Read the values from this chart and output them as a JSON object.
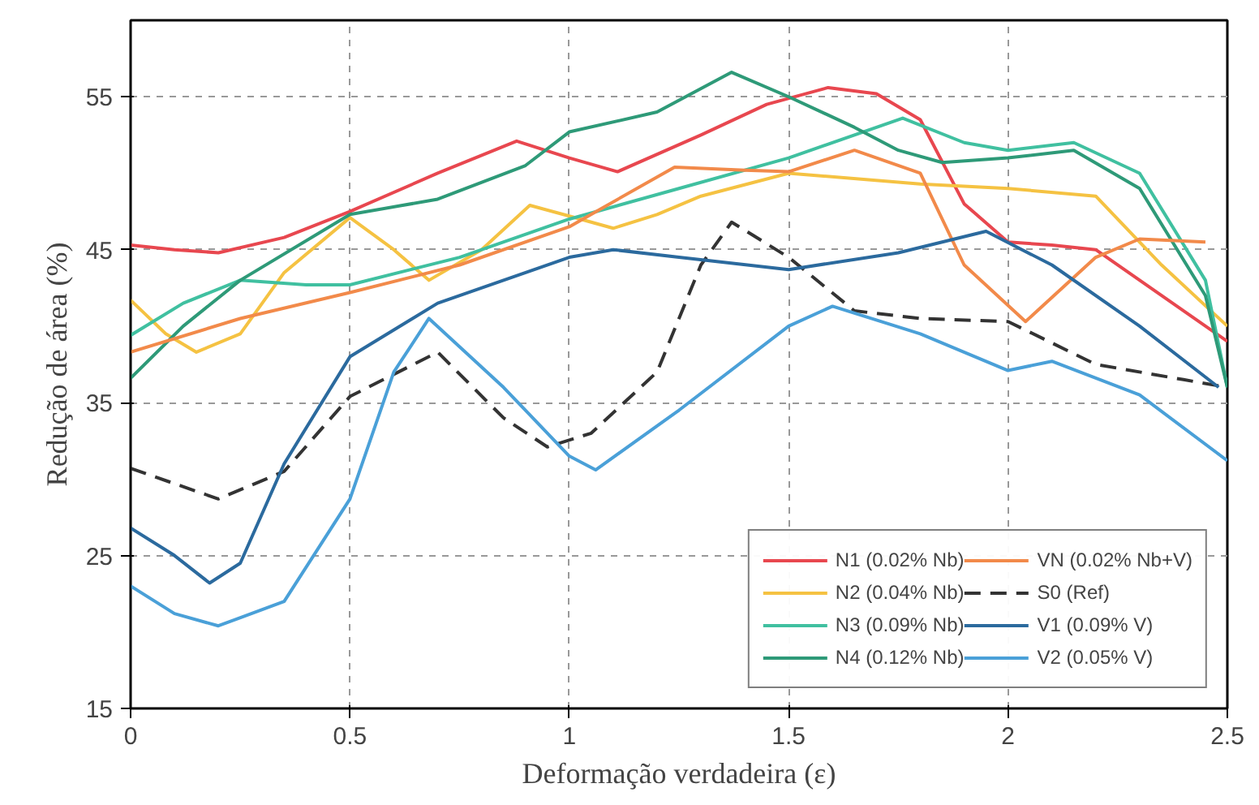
{
  "chart_data": {
    "type": "line",
    "xlabel": "Deformação verdadeira (ε)",
    "ylabel": "Redução de área (%)",
    "xlim": [
      0,
      2.5
    ],
    "ylim": [
      15,
      60
    ],
    "xticks": [
      0,
      0.5,
      1,
      1.5,
      2,
      2.5
    ],
    "yticks": [
      15,
      25,
      35,
      45,
      55
    ],
    "grid": true,
    "legend": "bottom right",
    "marker": "none",
    "series": [
      {
        "name": "N1 (0.02% Nb)",
        "color": "#e8474f",
        "line_style": "solid",
        "x": [
          0,
          0.1,
          0.2,
          0.35,
          0.5,
          0.7,
          0.88,
          1.0,
          1.11,
          1.3,
          1.45,
          1.59,
          1.7,
          1.8,
          1.9,
          2.0,
          2.1,
          2.2,
          2.35,
          2.5
        ],
        "values": [
          45.3,
          45.0,
          44.8,
          45.8,
          47.5,
          50.0,
          52.1,
          51.0,
          50.1,
          52.5,
          54.5,
          55.6,
          55.2,
          53.5,
          48.0,
          45.5,
          45.3,
          45.0,
          42.0,
          39.0
        ]
      },
      {
        "name": "N2 (0.04% Nb)",
        "color": "#f5c242",
        "line_style": "solid",
        "x": [
          0,
          0.08,
          0.15,
          0.25,
          0.35,
          0.5,
          0.6,
          0.68,
          0.8,
          0.91,
          1.0,
          1.1,
          1.2,
          1.3,
          1.5,
          1.8,
          2.0,
          2.2,
          2.35,
          2.5
        ],
        "values": [
          41.7,
          39.5,
          38.3,
          39.5,
          43.5,
          47.1,
          45.0,
          43.0,
          45.0,
          47.9,
          47.2,
          46.4,
          47.3,
          48.5,
          50.0,
          49.3,
          49.0,
          48.5,
          44.0,
          40.0
        ]
      },
      {
        "name": "N3 (0.09% Nb)",
        "color": "#40c0a0",
        "line_style": "solid",
        "x": [
          0,
          0.12,
          0.25,
          0.4,
          0.5,
          0.75,
          1.0,
          1.25,
          1.5,
          1.76,
          1.9,
          2.0,
          2.15,
          2.3,
          2.45,
          2.5
        ],
        "values": [
          39.4,
          41.5,
          43.0,
          42.7,
          42.7,
          44.5,
          47.0,
          49.0,
          51.0,
          53.6,
          52.0,
          51.5,
          52.0,
          50.0,
          43.0,
          36.0
        ]
      },
      {
        "name": "N4 (0.12% Nb)",
        "color": "#2e9a78",
        "line_style": "solid",
        "x": [
          0,
          0.12,
          0.25,
          0.5,
          0.7,
          0.9,
          1.0,
          1.2,
          1.37,
          1.5,
          1.65,
          1.75,
          1.85,
          2.0,
          2.15,
          2.3,
          2.45,
          2.5
        ],
        "values": [
          36.6,
          40.0,
          43.0,
          47.3,
          48.3,
          50.5,
          52.7,
          54.0,
          56.6,
          55.0,
          53.0,
          51.5,
          50.7,
          51.0,
          51.5,
          49.0,
          42.0,
          36.0
        ]
      },
      {
        "name": "VN (0.02% Nb+V)",
        "color": "#f28a4a",
        "line_style": "solid",
        "x": [
          0,
          0.25,
          0.5,
          0.75,
          1.0,
          1.24,
          1.4,
          1.5,
          1.65,
          1.8,
          1.9,
          2.04,
          2.2,
          2.3,
          2.45
        ],
        "values": [
          38.3,
          40.5,
          42.2,
          44.0,
          46.5,
          50.4,
          50.2,
          50.1,
          51.5,
          50.0,
          44.0,
          40.3,
          44.5,
          45.7,
          45.5
        ]
      },
      {
        "name": "S0 (Ref)",
        "color": "#333333",
        "line_style": "dashed",
        "x": [
          0,
          0.2,
          0.35,
          0.5,
          0.7,
          0.85,
          0.95,
          1.05,
          1.2,
          1.3,
          1.37,
          1.5,
          1.65,
          1.8,
          2.0,
          2.2,
          2.4,
          2.5
        ],
        "values": [
          30.7,
          28.7,
          30.5,
          35.4,
          38.3,
          34.0,
          32.1,
          33.0,
          37.0,
          44.0,
          46.8,
          44.5,
          41.0,
          40.5,
          40.3,
          37.5,
          36.5,
          36.0
        ]
      },
      {
        "name": "V1 (0.09% V)",
        "color": "#2b6a9e",
        "line_style": "solid",
        "x": [
          0,
          0.1,
          0.18,
          0.25,
          0.35,
          0.5,
          0.7,
          1.0,
          1.1,
          1.25,
          1.5,
          1.75,
          1.95,
          2.1,
          2.3,
          2.48
        ],
        "values": [
          26.8,
          25.0,
          23.2,
          24.5,
          31.0,
          38.0,
          41.5,
          44.5,
          45.0,
          44.5,
          43.7,
          44.8,
          46.2,
          44.0,
          40.0,
          36.0
        ]
      },
      {
        "name": "V2 (0.05% V)",
        "color": "#4aa0d8",
        "line_style": "solid",
        "x": [
          0,
          0.1,
          0.2,
          0.35,
          0.5,
          0.6,
          0.68,
          0.85,
          1.0,
          1.06,
          1.25,
          1.5,
          1.6,
          1.8,
          2.0,
          2.1,
          2.3,
          2.5
        ],
        "values": [
          23.0,
          21.2,
          20.4,
          22.0,
          28.7,
          37.0,
          40.5,
          36.0,
          31.5,
          30.6,
          34.5,
          40.0,
          41.3,
          39.5,
          37.1,
          37.7,
          35.5,
          31.2
        ]
      }
    ]
  }
}
